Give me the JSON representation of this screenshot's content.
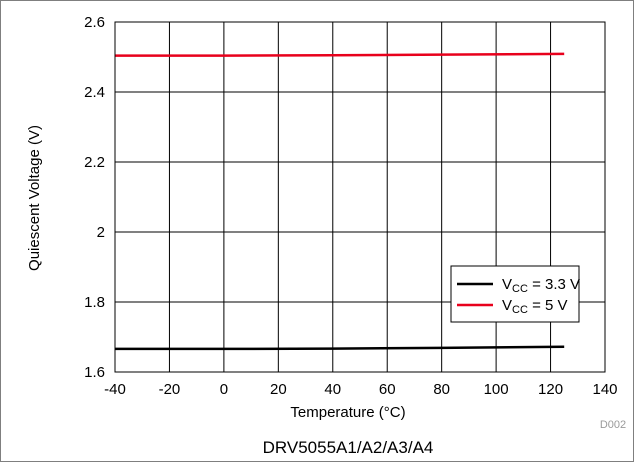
{
  "chart_data": {
    "type": "line",
    "title": "",
    "caption": "DRV5055A1/A2/A3/A4",
    "figure_id": "D002",
    "xlabel": "Temperature (°C)",
    "ylabel": "Quiescent Voltage (V)",
    "xlim": [
      -40,
      140
    ],
    "ylim": [
      1.6,
      2.6
    ],
    "x_ticks": [
      -40,
      -20,
      0,
      20,
      40,
      60,
      80,
      100,
      120,
      140
    ],
    "x_tick_labels": [
      "-40",
      "-20",
      "0",
      "20",
      "40",
      "60",
      "80",
      "100",
      "120",
      "140"
    ],
    "y_ticks": [
      1.6,
      1.8,
      2.0,
      2.2,
      2.4,
      2.6
    ],
    "y_tick_labels": [
      "1.6",
      "1.8",
      "2",
      "2.2",
      "2.4",
      "2.6"
    ],
    "grid": true,
    "legend_position": "lower-right",
    "series": [
      {
        "name": "VCC = 3.3 V",
        "legend_main": "V",
        "legend_sub": "CC",
        "legend_rest": " = 3.3 V",
        "color": "#000000",
        "x": [
          -40,
          0,
          40,
          80,
          125
        ],
        "y": [
          1.666,
          1.666,
          1.667,
          1.669,
          1.672
        ]
      },
      {
        "name": "VCC = 5 V",
        "legend_main": "V",
        "legend_sub": "CC",
        "legend_rest": " = 5 V",
        "color": "#e8001c",
        "x": [
          -40,
          0,
          40,
          80,
          125
        ],
        "y": [
          2.504,
          2.504,
          2.505,
          2.507,
          2.509
        ]
      }
    ]
  }
}
